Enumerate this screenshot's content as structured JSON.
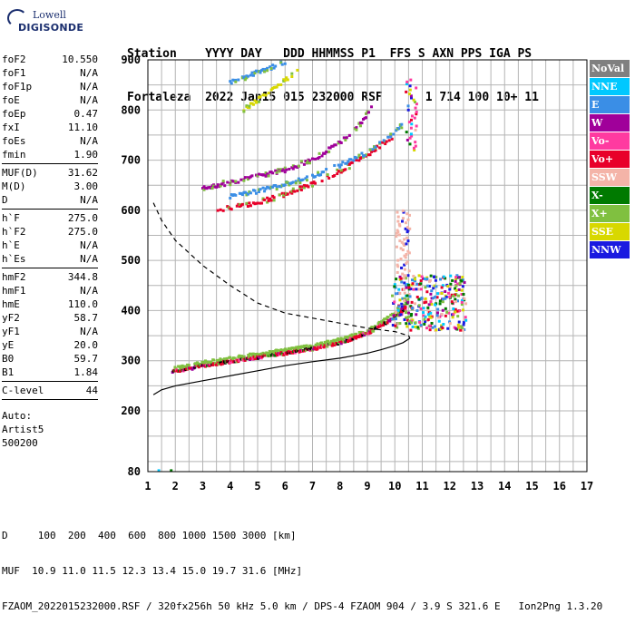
{
  "logo": {
    "line1": "Lowell",
    "line2": "DIGISONDE"
  },
  "header": {
    "row1": "Station    YYYY DAY   DDD HHMMSS P1  FFS S AXN PPS IGA PS",
    "row2": "Fortaleza  2022 Jan15 015 232000 RSF      1 714 100 10+ 11"
  },
  "parameters": {
    "group1": [
      {
        "name": "foF2",
        "value": "10.550"
      },
      {
        "name": "foF1",
        "value": "N/A"
      },
      {
        "name": "foF1p",
        "value": "N/A"
      },
      {
        "name": "foE",
        "value": "N/A"
      },
      {
        "name": "foEp",
        "value": "0.47"
      },
      {
        "name": "fxI",
        "value": "11.10"
      },
      {
        "name": "foEs",
        "value": "N/A"
      },
      {
        "name": "fmin",
        "value": "1.90"
      }
    ],
    "group2": [
      {
        "name": "MUF(D)",
        "value": "31.62"
      },
      {
        "name": "M(D)",
        "value": "3.00"
      },
      {
        "name": "D",
        "value": "N/A"
      }
    ],
    "group3": [
      {
        "name": "h`F",
        "value": "275.0"
      },
      {
        "name": "h`F2",
        "value": "275.0"
      },
      {
        "name": "h`E",
        "value": "N/A"
      },
      {
        "name": "h`Es",
        "value": "N/A"
      }
    ],
    "group4": [
      {
        "name": "hmF2",
        "value": "344.8"
      },
      {
        "name": "hmF1",
        "value": "N/A"
      },
      {
        "name": "hmE",
        "value": "110.0"
      },
      {
        "name": "yF2",
        "value": "58.7"
      },
      {
        "name": "yF1",
        "value": "N/A"
      },
      {
        "name": "yE",
        "value": "20.0"
      },
      {
        "name": "B0",
        "value": "59.7"
      },
      {
        "name": "B1",
        "value": "1.84"
      }
    ],
    "group5": [
      {
        "name": "C-level",
        "value": "44"
      }
    ],
    "autoscale": [
      "Auto:",
      "Artist5",
      "500200"
    ]
  },
  "legend": [
    {
      "label": "NoVal",
      "color": "#808080"
    },
    {
      "label": "NNE",
      "color": "#00c8ff"
    },
    {
      "label": "E",
      "color": "#3a8ee6"
    },
    {
      "label": "W",
      "color": "#a0009a"
    },
    {
      "label": "Vo-",
      "color": "#ff3aa0"
    },
    {
      "label": "Vo+",
      "color": "#e8002a"
    },
    {
      "label": "SSW",
      "color": "#f4b4a8"
    },
    {
      "label": "X-",
      "color": "#007a00"
    },
    {
      "label": "X+",
      "color": "#80c040"
    },
    {
      "label": "SSE",
      "color": "#d8d800"
    },
    {
      "label": "NNW",
      "color": "#1a1ae0"
    }
  ],
  "footer": {
    "line1": "D     100  200  400  600  800 1000 1500 3000 [km]",
    "line2": "MUF  10.9 11.0 11.5 12.3 13.4 15.0 19.7 31.6 [MHz]",
    "line3": "FZAOM_2022015232000.RSF / 320fx256h 50 kHz 5.0 km / DPS-4 FZAOM 904 / 3.9 S 321.6 E   Ion2Png 1.3.20"
  },
  "chart_data": {
    "type": "scatter",
    "xlim": [
      1,
      17
    ],
    "ylim": [
      80,
      900
    ],
    "x_ticks": [
      "1",
      "2",
      "3",
      "4",
      "5",
      "6",
      "7",
      "8",
      "9",
      "10",
      "11",
      "12",
      "13",
      "14",
      "15",
      "16",
      "17"
    ],
    "y_ticks": [
      "80",
      "200",
      "300",
      "400",
      "500",
      "600",
      "700",
      "800",
      "900"
    ],
    "y_tick_values": [
      80,
      200,
      300,
      400,
      500,
      600,
      700,
      800,
      900
    ],
    "grid": true,
    "x_gridlines_MHz": [
      1,
      1.5,
      2,
      2.5,
      3,
      3.5,
      4,
      4.5,
      5,
      5.5,
      6,
      6.5,
      7,
      7.5,
      8,
      8.5,
      9,
      9.5,
      10,
      10.5,
      11,
      11.5,
      12,
      12.5,
      13,
      13.5,
      14,
      14.5,
      15,
      15.5,
      16,
      16.5,
      17
    ],
    "y_gridlines_km": [
      80,
      100,
      150,
      200,
      250,
      300,
      350,
      400,
      450,
      500,
      550,
      600,
      650,
      700,
      750,
      800,
      850,
      900
    ],
    "o_trace": {
      "description_color": "#e8002a",
      "points": [
        [
          1.9,
          278
        ],
        [
          2.3,
          282
        ],
        [
          3,
          290
        ],
        [
          4,
          298
        ],
        [
          5,
          307
        ],
        [
          6,
          315
        ],
        [
          7,
          323
        ],
        [
          8,
          336
        ],
        [
          8.5,
          345
        ],
        [
          9,
          355
        ],
        [
          9.5,
          370
        ],
        [
          10,
          388
        ],
        [
          10.3,
          400
        ],
        [
          10.5,
          420
        ]
      ]
    },
    "x_trace_color": "#80c040",
    "multi_hop_traces": [
      {
        "color": "#e8002a",
        "points": [
          [
            3.5,
            600
          ],
          [
            4,
            605
          ],
          [
            5,
            615
          ],
          [
            6,
            632
          ],
          [
            7,
            652
          ],
          [
            8,
            678
          ],
          [
            9,
            710
          ],
          [
            10,
            750
          ]
        ]
      },
      {
        "color": "#3a8ee6",
        "points": [
          [
            4,
            628
          ],
          [
            5,
            638
          ],
          [
            6,
            652
          ],
          [
            7,
            668
          ],
          [
            8,
            690
          ],
          [
            9,
            715
          ],
          [
            9.8,
            745
          ],
          [
            10.3,
            770
          ]
        ]
      },
      {
        "color": "#a0009a",
        "points": [
          [
            3,
            645
          ],
          [
            4,
            655
          ],
          [
            5,
            668
          ],
          [
            6,
            680
          ],
          [
            7,
            700
          ],
          [
            8,
            735
          ],
          [
            8.8,
            775
          ],
          [
            9.2,
            810
          ]
        ]
      },
      {
        "color": "#3a8ee6",
        "points": [
          [
            4,
            855
          ],
          [
            5,
            875
          ],
          [
            6,
            895
          ]
        ]
      },
      {
        "color": "#d8d800",
        "points": [
          [
            4.5,
            800
          ],
          [
            5.5,
            840
          ],
          [
            6.5,
            880
          ]
        ]
      }
    ],
    "spread_cluster": {
      "x_range": [
        9.9,
        12.6
      ],
      "y_range": [
        360,
        470
      ]
    },
    "vertical_spread": {
      "x": 10.3,
      "y_range": [
        470,
        600
      ],
      "color": "#f4b4a8"
    },
    "profile_solid": [
      [
        1.2,
        232
      ],
      [
        1.5,
        242
      ],
      [
        2,
        250
      ],
      [
        3,
        260
      ],
      [
        4,
        270
      ],
      [
        5,
        280
      ],
      [
        6,
        290
      ],
      [
        7,
        298
      ],
      [
        8,
        305
      ],
      [
        8.5,
        310
      ],
      [
        9,
        315
      ],
      [
        9.5,
        322
      ],
      [
        10,
        330
      ],
      [
        10.3,
        336
      ],
      [
        10.5,
        343
      ],
      [
        10.55,
        345
      ]
    ],
    "profile_dashed": [
      [
        1.2,
        615
      ],
      [
        1.5,
        580
      ],
      [
        2,
        540
      ],
      [
        3,
        490
      ],
      [
        4,
        450
      ],
      [
        5,
        415
      ],
      [
        6,
        395
      ],
      [
        7,
        385
      ],
      [
        8,
        375
      ],
      [
        9,
        365
      ],
      [
        10,
        358
      ],
      [
        10.5,
        350
      ],
      [
        10.55,
        345
      ]
    ]
  }
}
